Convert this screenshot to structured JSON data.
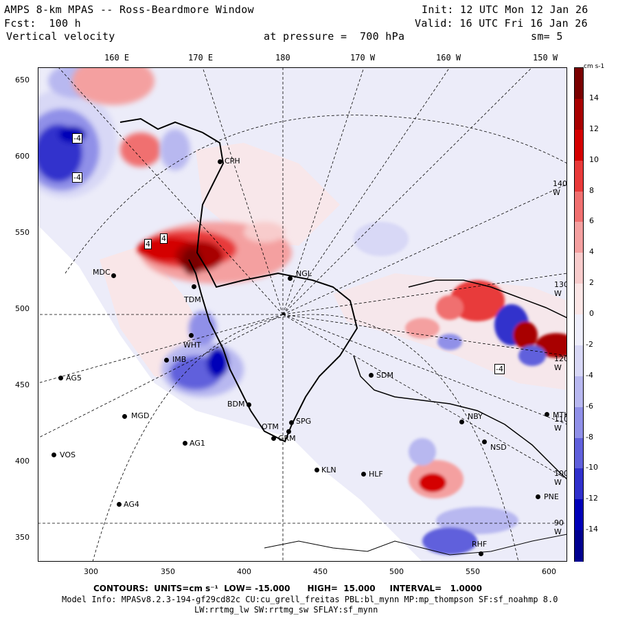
{
  "header": {
    "line1_left": "AMPS 8-km MPAS -- Ross-Beardmore Window",
    "line1_right": "Init: 12 UTC Mon 12 Jan 26",
    "line2_left": "Fcst:  100 h",
    "line2_right": "Valid: 16 UTC Fri 16 Jan 26",
    "line3_left": "Vertical velocity",
    "line3_mid": "at pressure =  700 hPa",
    "line3_right": "sm= 5"
  },
  "map": {
    "top_longitudes": [
      "160 E",
      "170 E",
      "180",
      "170 W",
      "160 W",
      "150 W"
    ],
    "inner_longitudes": [
      "140 W",
      "130 W",
      "120 W",
      "110 W",
      "100 W",
      "90 W"
    ],
    "y_ticks": [
      "650",
      "600",
      "550",
      "500",
      "450",
      "400",
      "350"
    ],
    "x_ticks": [
      "300",
      "350",
      "400",
      "450",
      "500",
      "550",
      "600"
    ],
    "contour_labels": [
      "-4",
      "-4",
      "4",
      "4",
      "-4"
    ],
    "stations": [
      {
        "name": "CPH"
      },
      {
        "name": "MDC"
      },
      {
        "name": "NGL"
      },
      {
        "name": "TDM"
      },
      {
        "name": "WHT"
      },
      {
        "name": "IMB"
      },
      {
        "name": "AG5"
      },
      {
        "name": "SDM"
      },
      {
        "name": "BDM"
      },
      {
        "name": "MGD"
      },
      {
        "name": "OTM"
      },
      {
        "name": "SPG"
      },
      {
        "name": "GRM"
      },
      {
        "name": "AG1"
      },
      {
        "name": "VOS"
      },
      {
        "name": "KLN"
      },
      {
        "name": "HLF"
      },
      {
        "name": "NBY"
      },
      {
        "name": "NSD"
      },
      {
        "name": "MTK"
      },
      {
        "name": "AG4"
      },
      {
        "name": "PNE"
      },
      {
        "name": "RHF"
      }
    ]
  },
  "colorbar": {
    "units": "cm s-1",
    "labels": [
      "14",
      "12",
      "10",
      "8",
      "6",
      "4",
      "2",
      "0",
      "-2",
      "-4",
      "-6",
      "-8",
      "-10",
      "-12",
      "-14"
    ],
    "colors": [
      "#7a0000",
      "#a80000",
      "#d40000",
      "#e83a3a",
      "#f07070",
      "#f4a0a0",
      "#f8cccc",
      "#fbe6e6",
      "#eeeefb",
      "#d8d8f6",
      "#b8b8f0",
      "#9090e8",
      "#6060dc",
      "#3030cc",
      "#0000b8",
      "#000090"
    ]
  },
  "footer": {
    "line1": "CONTOURS:  UNITS=cm s⁻¹  LOW= -15.000      HIGH=  15.000     INTERVAL=   1.0000",
    "line2": "Model Info: MPASv8.2.3-194-gf29cd82c CU:cu_grell_freitas PBL:bl_mynn MP:mp_thompson SF:sf_noahmp 8.0",
    "line3": "LW:rrtmg_lw SW:rrtmg_sw SFLAY:sf_mynn"
  }
}
